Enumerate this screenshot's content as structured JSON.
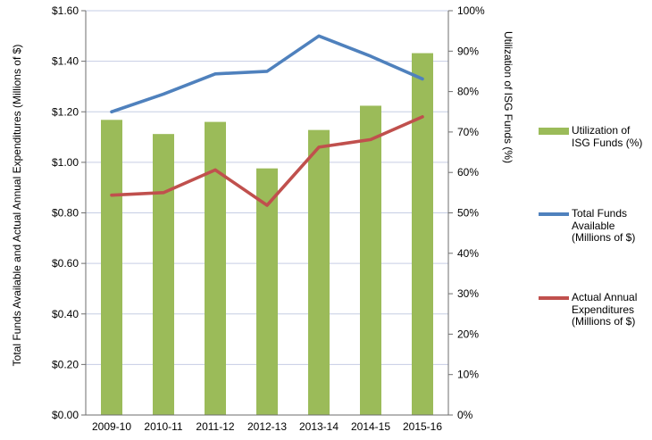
{
  "chart_data": {
    "type": "bar",
    "subtype": "combo-bar-line-dual-axis",
    "categories": [
      "2009-10",
      "2010-11",
      "2011-12",
      "2012-13",
      "2013-14",
      "2014-15",
      "2015-16"
    ],
    "series": [
      {
        "name": "Utilization of ISG Funds (%)",
        "type": "bar",
        "axis": "right",
        "color": "#9BBB59",
        "values": [
          73,
          69.5,
          72.5,
          61,
          70.5,
          76.5,
          89.5
        ]
      },
      {
        "name": "Total Funds Available (Millions of $)",
        "type": "line",
        "axis": "left",
        "color": "#4F81BD",
        "values": [
          1.2,
          1.27,
          1.35,
          1.36,
          1.5,
          1.42,
          1.33
        ]
      },
      {
        "name": "Actual Annual Expenditures (Millions of $)",
        "type": "line",
        "axis": "left",
        "color": "#C0504D",
        "values": [
          0.87,
          0.88,
          0.97,
          0.83,
          1.06,
          1.09,
          1.18
        ]
      }
    ],
    "left_axis": {
      "title": "Total Funds Available and Actual Annual Expenditures (Millions of $)",
      "min": 0,
      "max": 1.6,
      "step": 0.2,
      "tick_labels": [
        "$1.60",
        "$1.40",
        "$1.20",
        "$1.00",
        "$0.80",
        "$0.60",
        "$0.40",
        "$0.20",
        "$0.00"
      ]
    },
    "right_axis": {
      "title": "Utilization of ISG Funds (%)",
      "min": 0,
      "max": 100,
      "step": 10,
      "tick_labels": [
        "100%",
        "90%",
        "80%",
        "70%",
        "60%",
        "50%",
        "40%",
        "30%",
        "20%",
        "10%",
        "0%"
      ]
    },
    "grid": true,
    "legend_position": "right",
    "legend": [
      {
        "marker": "bar",
        "color": "#9BBB59",
        "text": "Utilization of\nISG Funds (%)"
      },
      {
        "marker": "line",
        "color": "#4F81BD",
        "text": "Total Funds\nAvailable\n(Millions of $)"
      },
      {
        "marker": "line",
        "color": "#C0504D",
        "text": "Actual Annual\nExpenditures\n(Millions of $)"
      }
    ],
    "colors": {
      "grid": "#C6CDE4",
      "axis": "#6E6E6E",
      "text": "#000000",
      "background": "#FFFFFF"
    }
  }
}
